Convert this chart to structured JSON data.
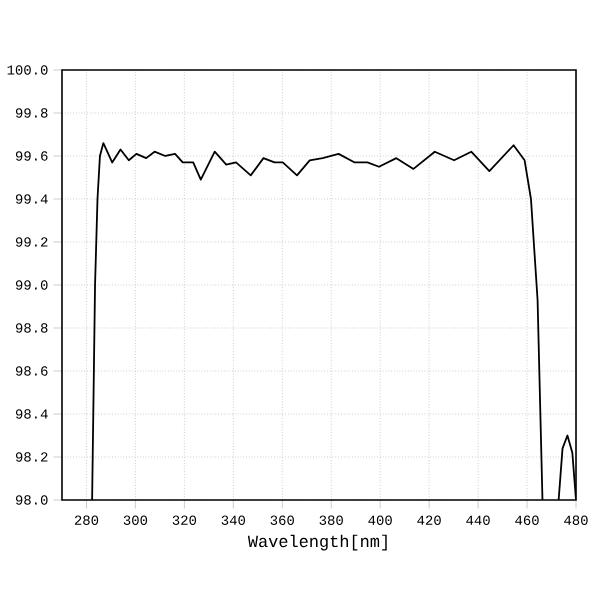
{
  "chart_data": {
    "type": "line",
    "xlabel": "Wavelength[nm]",
    "xlim": [
      270,
      480
    ],
    "ylim": [
      98.0,
      100.0
    ],
    "xticks": [
      280,
      300,
      320,
      340,
      360,
      380,
      400,
      420,
      440,
      460,
      480
    ],
    "yticks": [
      {
        "value": 98.0,
        "label": "98.0"
      },
      {
        "value": 98.2,
        "label": "98.2"
      },
      {
        "value": 98.4,
        "label": "98.4"
      },
      {
        "value": 98.6,
        "label": "98.6"
      },
      {
        "value": 98.8,
        "label": "98.8"
      },
      {
        "value": 99.0,
        "label": "99.0"
      },
      {
        "value": 99.2,
        "label": "99.2"
      },
      {
        "value": 99.4,
        "label": "99.4"
      },
      {
        "value": 99.6,
        "label": "99.6"
      },
      {
        "value": 99.8,
        "label": "99.8"
      },
      {
        "value": 100.0,
        "label": "100.0"
      }
    ],
    "grid": true,
    "marker": "none",
    "line_style": "solid",
    "series": [
      {
        "color": "#000000",
        "x": [
          282.3,
          283.5,
          284.5,
          285.5,
          286.9,
          290.5,
          293.9,
          297.3,
          300.4,
          304.4,
          307.8,
          312.2,
          316.2,
          319.3,
          323.6,
          326.7,
          332.4,
          337.1,
          341.1,
          347.1,
          352.3,
          356.8,
          360.2,
          366.0,
          371.2,
          376.5,
          383.0,
          389.6,
          394.8,
          399.5,
          406.6,
          413.6,
          422.3,
          430.2,
          437.2,
          444.6,
          454.5,
          459.0,
          461.6,
          464.3,
          466.3,
          469.5,
          472.9,
          474.5,
          476.5,
          478.5,
          480.0
        ],
        "values": [
          98.0,
          99.0,
          99.4,
          99.6,
          99.66,
          99.57,
          99.63,
          99.58,
          99.61,
          99.59,
          99.62,
          99.6,
          99.61,
          99.57,
          99.57,
          99.49,
          99.62,
          99.56,
          99.57,
          99.51,
          99.59,
          99.57,
          99.57,
          99.51,
          99.58,
          99.59,
          99.61,
          99.57,
          99.57,
          99.55,
          99.59,
          99.54,
          99.62,
          99.58,
          99.62,
          99.53,
          99.65,
          99.58,
          99.4,
          98.93,
          98.0,
          null,
          98.0,
          98.24,
          98.3,
          98.22,
          98.0
        ]
      }
    ]
  }
}
